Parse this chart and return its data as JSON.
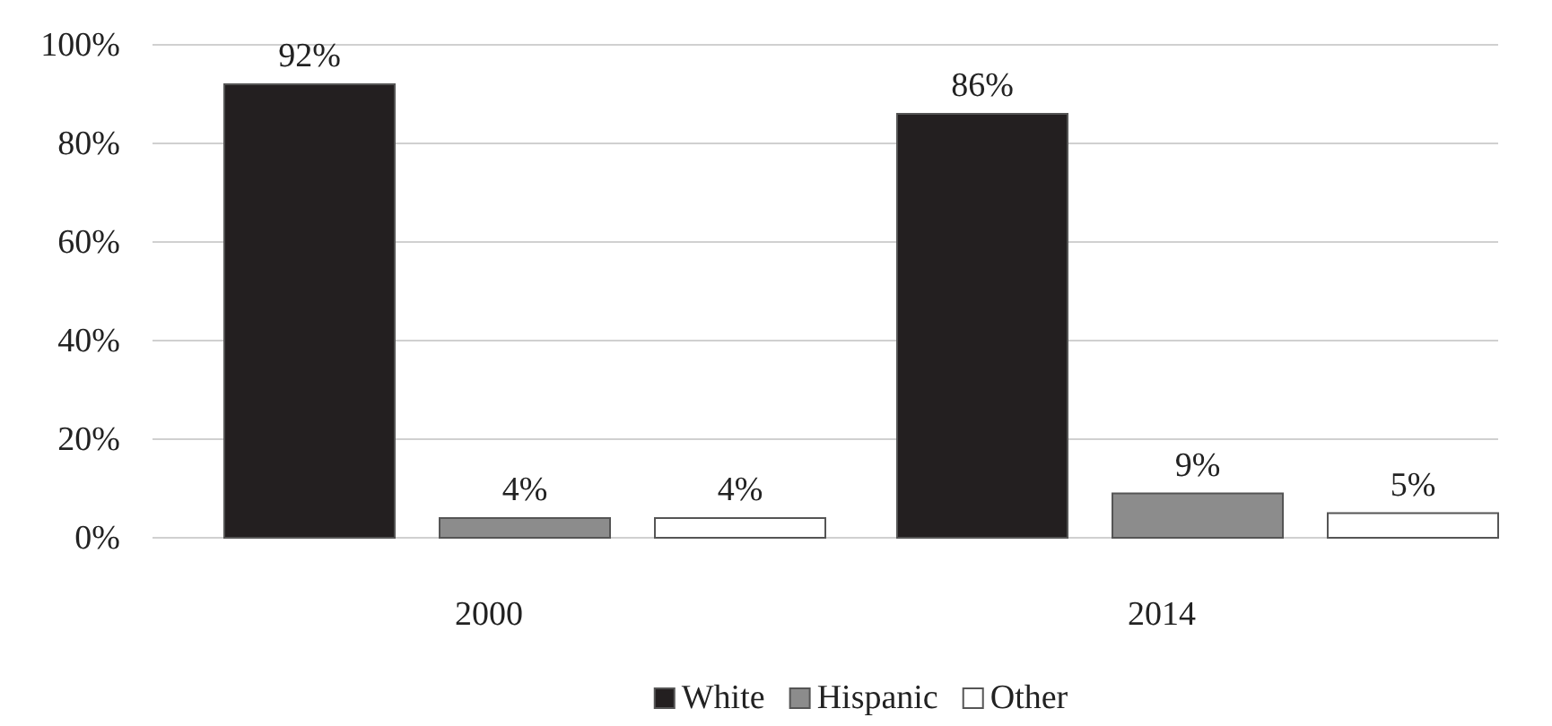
{
  "chart_data": {
    "type": "bar",
    "categories": [
      "2000",
      "2014"
    ],
    "series": [
      {
        "name": "White",
        "color": "#231f20",
        "values": [
          92,
          86
        ],
        "value_labels": [
          "92%",
          "86%"
        ]
      },
      {
        "name": "Hispanic",
        "color": "#8c8c8c",
        "values": [
          4,
          9
        ],
        "value_labels": [
          "4%",
          "9%"
        ]
      },
      {
        "name": "Other",
        "color": "#ffffff",
        "values": [
          4,
          5
        ],
        "value_labels": [
          "4%",
          "5%"
        ]
      }
    ],
    "ylim": [
      0,
      100
    ],
    "yticks": [
      {
        "value": 0,
        "label": "0%"
      },
      {
        "value": 20,
        "label": "20%"
      },
      {
        "value": 40,
        "label": "40%"
      },
      {
        "value": 60,
        "label": "60%"
      },
      {
        "value": 80,
        "label": "80%"
      },
      {
        "value": 100,
        "label": "100%"
      }
    ],
    "grid": "y",
    "legend": "bottom"
  }
}
